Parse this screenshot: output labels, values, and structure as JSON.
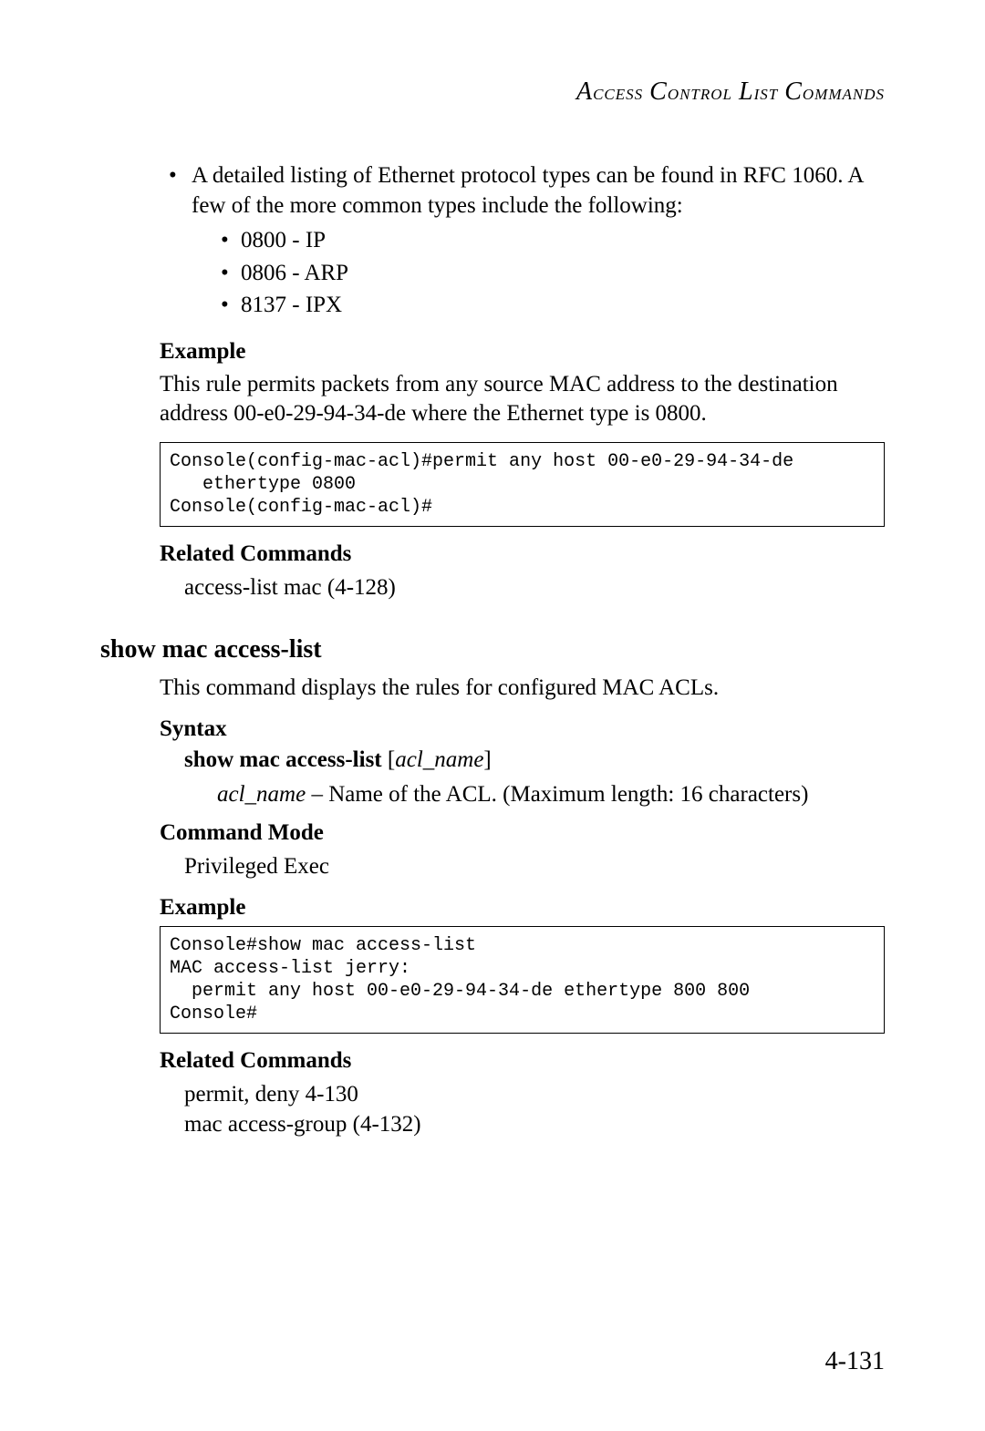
{
  "running_head": "Access Control List Commands",
  "bullet_intro": "A detailed listing of Ethernet protocol types can be found in RFC 1060. A few of the more common types include the following:",
  "subitems": [
    "0800 - IP",
    "0806 - ARP",
    "8137 - IPX"
  ],
  "example_head": "Example",
  "example_text": "This rule permits packets from any source MAC address to the destination address 00-e0-29-94-34-de where the Ethernet type is 0800.",
  "code1": "Console(config-mac-acl)#permit any host 00-e0-29-94-34-de \n   ethertype 0800\nConsole(config-mac-acl)#",
  "related_head": "Related Commands",
  "related1": "access-list mac (4-128)",
  "cmd_title": "show mac access-list",
  "cmd_desc": "This command displays the rules for configured MAC ACLs.",
  "syntax_head": "Syntax",
  "syntax_bold": "show mac access-list",
  "syntax_bracket_open": " [",
  "syntax_ital": "acl_name",
  "syntax_bracket_close": "]",
  "param_ital": "acl_name",
  "param_rest": " – Name of the ACL. (Maximum length: 16 characters)",
  "mode_head": "Command Mode",
  "mode_val": "Privileged Exec",
  "example2_head": "Example",
  "code2": "Console#show mac access-list\nMAC access-list jerry:\n  permit any host 00-e0-29-94-34-de ethertype 800 800\nConsole#",
  "related2_head": "Related Commands",
  "related2a": "permit, deny 4-130",
  "related2b": "mac access-group (4-132)",
  "page_num": "4-131"
}
